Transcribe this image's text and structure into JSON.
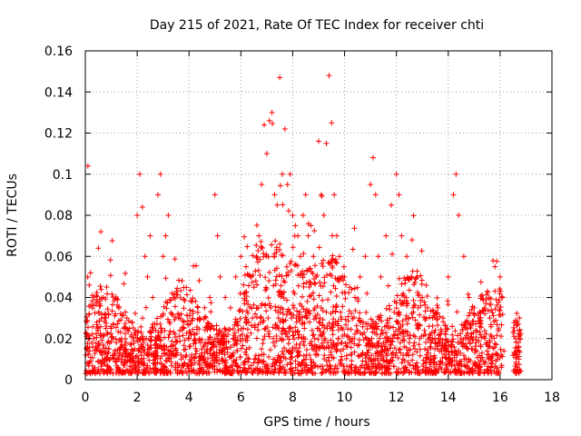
{
  "chart_data": {
    "type": "scatter",
    "title": "Day 215 of 2021, Rate Of TEC Index for receiver chti",
    "xlabel": "GPS time / hours",
    "ylabel": "ROTI / TECUs",
    "xlim": [
      0,
      18
    ],
    "ylim": [
      0,
      0.16
    ],
    "x_ticks": [
      0,
      2,
      4,
      6,
      8,
      10,
      12,
      14,
      16,
      18
    ],
    "x_tick_labels": [
      "0",
      "2",
      "4",
      "6",
      "8",
      "10",
      "12",
      "14",
      "16",
      "18"
    ],
    "y_ticks": [
      0,
      0.02,
      0.04,
      0.06,
      0.08,
      0.1,
      0.12,
      0.14,
      0.16
    ],
    "y_tick_labels": [
      "0",
      "0.02",
      "0.04",
      "0.06",
      "0.08",
      "0.1",
      "0.12",
      "0.14",
      "0.16"
    ],
    "grid": true,
    "marker": "plus",
    "color": "#ff0000",
    "series": [
      {
        "name": "ROTI",
        "x": [
          0.05,
          0.1,
          0.15,
          0.2,
          0.3,
          0.5,
          0.6,
          0.7,
          0.8,
          1.0,
          1.2,
          1.4,
          1.6,
          1.8,
          2.0,
          2.1,
          2.2,
          2.3,
          2.4,
          2.5,
          2.6,
          2.8,
          2.9,
          3.0,
          3.1,
          3.2,
          3.4,
          3.6,
          3.8,
          4.0,
          4.2,
          4.4,
          4.6,
          4.8,
          5.0,
          5.1,
          5.2,
          5.4,
          5.6,
          5.8,
          6.0,
          6.2,
          6.4,
          6.5,
          6.6,
          6.7,
          6.8,
          6.9,
          7.0,
          7.1,
          7.2,
          7.3,
          7.4,
          7.5,
          7.6,
          7.7,
          7.8,
          7.9,
          8.0,
          8.1,
          8.2,
          8.3,
          8.4,
          8.5,
          8.6,
          8.7,
          8.8,
          8.9,
          9.0,
          9.1,
          9.2,
          9.3,
          9.4,
          9.5,
          9.6,
          9.7,
          9.8,
          10.0,
          10.2,
          10.4,
          10.6,
          10.8,
          11.0,
          11.1,
          11.2,
          11.3,
          11.4,
          11.6,
          11.8,
          12.0,
          12.1,
          12.2,
          12.4,
          12.6,
          12.8,
          13.0,
          13.2,
          13.4,
          13.6,
          13.8,
          14.0,
          14.2,
          14.3,
          14.4,
          14.6,
          14.8,
          15.0,
          15.2,
          15.4,
          15.6,
          15.8,
          16.0,
          16.1,
          16.6,
          16.7,
          0.02,
          0.08,
          0.12,
          0.25,
          0.4,
          0.55,
          0.65,
          0.75,
          0.9,
          1.1,
          1.3,
          1.5,
          1.7,
          1.9,
          2.05,
          2.15,
          2.25,
          2.35,
          2.45,
          2.55,
          2.7,
          2.85,
          2.95,
          3.05,
          3.15,
          3.3,
          3.5,
          3.7,
          3.9,
          4.1,
          4.3,
          4.5,
          4.7,
          4.9,
          5.05,
          5.15,
          5.3,
          5.5,
          5.7,
          5.9,
          6.1,
          6.3,
          6.45,
          6.55,
          6.65,
          6.75,
          6.85,
          6.95,
          7.05,
          7.15,
          7.25,
          7.35,
          7.45,
          7.55,
          7.65,
          7.75,
          7.85,
          7.95,
          8.05,
          8.15,
          8.25,
          8.35,
          8.45,
          8.55,
          8.65,
          8.75,
          8.85,
          8.95,
          9.05,
          9.15,
          9.25,
          9.35,
          9.45,
          9.55,
          9.65,
          9.75,
          9.9,
          10.1,
          10.3,
          10.5,
          10.7,
          10.9,
          11.05,
          11.15,
          11.25,
          11.35,
          11.5,
          11.7,
          11.9,
          12.05,
          12.15,
          12.3,
          12.5,
          12.7,
          12.9,
          13.1,
          13.3,
          13.5,
          13.7,
          13.9,
          14.1,
          14.25,
          14.35,
          14.5,
          14.7,
          14.9,
          15.1,
          15.3,
          15.5,
          15.7,
          15.9,
          16.05,
          16.15,
          16.62,
          16.72
        ],
        "y": [
          0.028,
          0.104,
          0.046,
          0.052,
          0.036,
          0.064,
          0.072,
          0.04,
          0.03,
          0.025,
          0.018,
          0.02,
          0.03,
          0.028,
          0.08,
          0.1,
          0.084,
          0.06,
          0.05,
          0.07,
          0.04,
          0.09,
          0.1,
          0.06,
          0.07,
          0.08,
          0.04,
          0.03,
          0.025,
          0.02,
          0.022,
          0.03,
          0.035,
          0.04,
          0.09,
          0.07,
          0.05,
          0.04,
          0.035,
          0.05,
          0.06,
          0.055,
          0.05,
          0.045,
          0.06,
          0.07,
          0.095,
          0.124,
          0.11,
          0.126,
          0.13,
          0.09,
          0.085,
          0.147,
          0.1,
          0.122,
          0.095,
          0.1,
          0.08,
          0.075,
          0.07,
          0.06,
          0.08,
          0.09,
          0.07,
          0.075,
          0.06,
          0.05,
          0.116,
          0.09,
          0.08,
          0.115,
          0.148,
          0.125,
          0.09,
          0.07,
          0.06,
          0.05,
          0.045,
          0.04,
          0.05,
          0.06,
          0.095,
          0.108,
          0.09,
          0.06,
          0.05,
          0.07,
          0.085,
          0.1,
          0.09,
          0.07,
          0.06,
          0.068,
          0.05,
          0.04,
          0.035,
          0.03,
          0.035,
          0.03,
          0.05,
          0.09,
          0.1,
          0.08,
          0.06,
          0.04,
          0.035,
          0.03,
          0.035,
          0.03,
          0.055,
          0.05,
          0.04,
          0.02,
          0.018,
          0.012,
          0.015,
          0.02,
          0.018,
          0.016,
          0.014,
          0.012,
          0.01,
          0.015,
          0.012,
          0.01,
          0.008,
          0.012,
          0.015,
          0.014,
          0.016,
          0.018,
          0.02,
          0.015,
          0.012,
          0.014,
          0.016,
          0.015,
          0.013,
          0.012,
          0.014,
          0.012,
          0.01,
          0.012,
          0.011,
          0.014,
          0.013,
          0.015,
          0.017,
          0.016,
          0.018,
          0.02,
          0.022,
          0.02,
          0.024,
          0.025,
          0.028,
          0.03,
          0.032,
          0.035,
          0.03,
          0.028,
          0.025,
          0.03,
          0.035,
          0.02,
          0.025,
          0.03,
          0.035,
          0.028,
          0.022,
          0.025,
          0.03,
          0.035,
          0.028,
          0.022,
          0.02,
          0.025,
          0.03,
          0.028,
          0.024,
          0.02,
          0.025,
          0.03,
          0.022,
          0.02,
          0.018,
          0.025,
          0.022,
          0.028,
          0.02,
          0.018,
          0.016,
          0.02,
          0.024,
          0.022,
          0.018,
          0.02,
          0.025,
          0.022,
          0.02,
          0.018,
          0.02,
          0.022,
          0.02,
          0.018,
          0.016,
          0.02,
          0.018,
          0.02,
          0.015,
          0.016,
          0.018,
          0.02,
          0.018,
          0.016,
          0.014,
          0.012,
          0.018,
          0.016,
          0.015,
          0.014,
          0.013,
          0.014,
          0.012,
          0.01,
          0.012,
          0.014,
          0.012,
          0.01
        ]
      }
    ],
    "data_extent": {
      "x": [
        0,
        16.8
      ],
      "y_floor": 0.003
    }
  }
}
